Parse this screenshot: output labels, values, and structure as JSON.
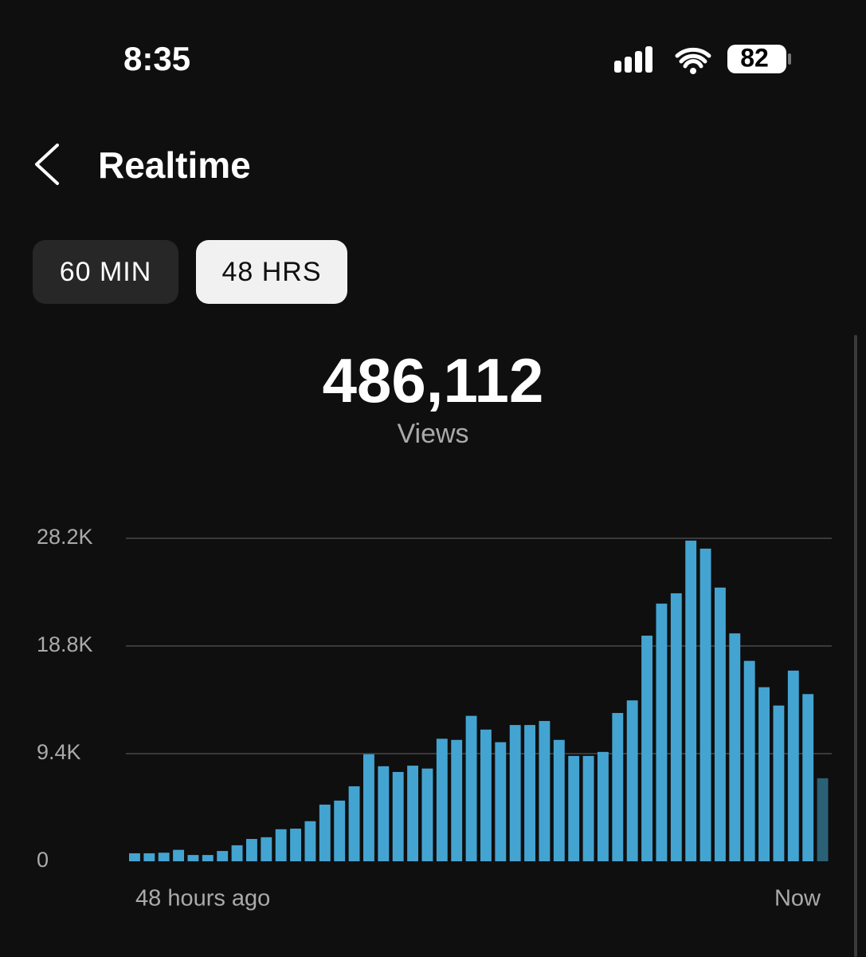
{
  "status_bar": {
    "time": "8:35",
    "battery": "82"
  },
  "header": {
    "title": "Realtime"
  },
  "tabs": [
    {
      "label": "60 MIN",
      "selected": false
    },
    {
      "label": "48 HRS",
      "selected": true
    }
  ],
  "summary": {
    "value": "486,112",
    "label": "Views"
  },
  "chart_data": {
    "type": "bar",
    "values": [
      700,
      700,
      750,
      1000,
      550,
      550,
      900,
      1400,
      1950,
      2100,
      2800,
      2850,
      3500,
      4950,
      5300,
      6550,
      9350,
      8300,
      7800,
      8350,
      8100,
      10700,
      10600,
      12700,
      11500,
      10400,
      11900,
      11900,
      12250,
      10600,
      9200,
      9200,
      9550,
      12950,
      14050,
      19700,
      22500,
      23400,
      28000,
      27300,
      23900,
      19900,
      17500,
      15200,
      13600,
      16650,
      14600,
      7250
    ],
    "color": "#44a4d1",
    "current_color": "#2b6176",
    "ylim": [
      0,
      28200
    ],
    "yticks": [
      0,
      {
        "value": 9400,
        "label": "9.4K"
      },
      {
        "value": 18800,
        "label": "18.8K"
      },
      {
        "value": 28200,
        "label": "28.2K"
      }
    ],
    "grid": true,
    "x_labels": [
      "48 hours ago",
      "Now"
    ]
  }
}
